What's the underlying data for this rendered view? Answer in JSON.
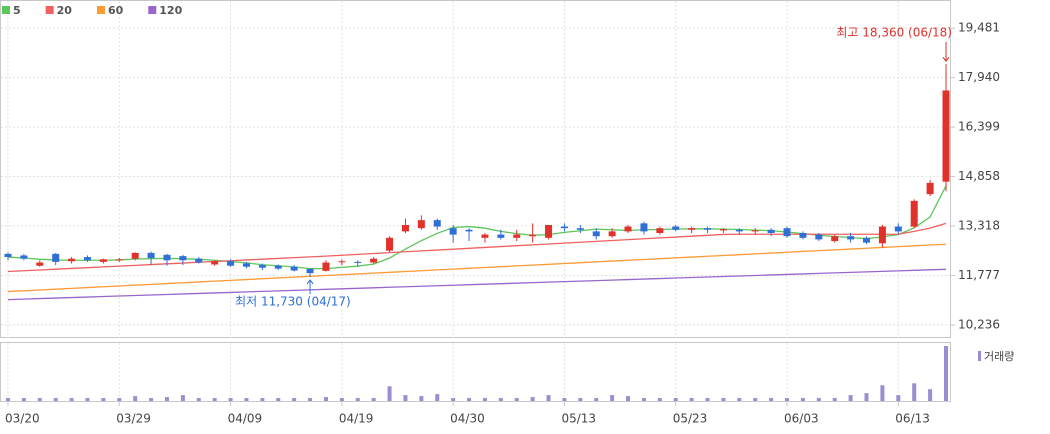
{
  "chart_data": {
    "type": "candlestick",
    "categories": [
      "03/20",
      null,
      null,
      null,
      null,
      null,
      null,
      "03/29",
      null,
      null,
      null,
      null,
      null,
      null,
      "04/09",
      null,
      null,
      null,
      null,
      null,
      null,
      "04/19",
      null,
      null,
      null,
      null,
      null,
      null,
      "04/30",
      null,
      null,
      null,
      null,
      null,
      null,
      "05/13",
      null,
      null,
      null,
      null,
      null,
      null,
      "05/23",
      null,
      null,
      null,
      null,
      null,
      null,
      "06/03",
      null,
      null,
      null,
      null,
      null,
      null,
      "06/13",
      null,
      null,
      null
    ],
    "open": [
      12450,
      12400,
      12080,
      12450,
      12220,
      12350,
      12200,
      12250,
      12300,
      12480,
      12420,
      12380,
      12300,
      12120,
      12220,
      12150,
      12100,
      12080,
      12050,
      11980,
      11920,
      12200,
      12200,
      12180,
      12550,
      13150,
      13250,
      13500,
      13250,
      13200,
      12950,
      13050,
      12950,
      13000,
      12950,
      13300,
      13250,
      13150,
      13000,
      13150,
      13400,
      13100,
      13300,
      13200,
      13250,
      13180,
      13200,
      13150,
      13200,
      13250,
      13100,
      13050,
      12850,
      13000,
      12950,
      12780,
      13300,
      13300,
      14310,
      14700
    ],
    "high": [
      12500,
      12450,
      12250,
      12480,
      12350,
      12400,
      12300,
      12320,
      12500,
      12520,
      12450,
      12420,
      12350,
      12250,
      12280,
      12200,
      12150,
      12120,
      12100,
      12000,
      12250,
      12280,
      12250,
      12350,
      13000,
      13550,
      13650,
      13550,
      13350,
      13250,
      13100,
      13200,
      13200,
      13400,
      13350,
      13400,
      13350,
      13250,
      13250,
      13350,
      13450,
      13300,
      13350,
      13300,
      13300,
      13250,
      13250,
      13250,
      13250,
      13300,
      13150,
      13100,
      13050,
      13100,
      13000,
      13350,
      13400,
      14150,
      14750,
      18360
    ],
    "low": [
      12250,
      12250,
      12050,
      12100,
      12150,
      12200,
      12150,
      12200,
      12250,
      12100,
      12080,
      12100,
      12150,
      12080,
      12050,
      12000,
      11950,
      11950,
      11900,
      11730,
      11900,
      12100,
      12050,
      12150,
      12500,
      13100,
      13200,
      13200,
      12800,
      12850,
      12800,
      12900,
      12850,
      12800,
      12900,
      13150,
      13100,
      12900,
      12950,
      13100,
      13050,
      13050,
      13150,
      13100,
      13100,
      13100,
      13050,
      13050,
      13000,
      12950,
      12900,
      12850,
      12800,
      12800,
      12750,
      12650,
      13050,
      13250,
      14250,
      14400
    ],
    "close": [
      12350,
      12300,
      12180,
      12200,
      12300,
      12250,
      12280,
      12280,
      12480,
      12320,
      12250,
      12250,
      12180,
      12220,
      12080,
      12050,
      12020,
      11990,
      11930,
      11850,
      12180,
      12220,
      12180,
      12300,
      12950,
      13350,
      13500,
      13300,
      13050,
      13150,
      13050,
      12950,
      13050,
      13050,
      13350,
      13250,
      13200,
      13000,
      13150,
      13300,
      13150,
      13250,
      13200,
      13250,
      13200,
      13220,
      13150,
      13180,
      13100,
      13000,
      12950,
      12900,
      13000,
      12900,
      12800,
      13300,
      13150,
      14100,
      14660,
      17540
    ],
    "up_color": "#e0312a",
    "down_color": "#2f6fd6",
    "series": [
      {
        "name": "5",
        "color": "#5cc65c",
        "values": [
          12350,
          12320,
          12280,
          12260,
          12250,
          12250,
          12250,
          12260,
          12290,
          12300,
          12310,
          12300,
          12280,
          12250,
          12210,
          12170,
          12110,
          12080,
          12040,
          11990,
          11990,
          12030,
          12070,
          12130,
          12320,
          12600,
          12860,
          13090,
          13270,
          13300,
          13250,
          13150,
          13080,
          13030,
          13050,
          13120,
          13170,
          13220,
          13200,
          13180,
          13200,
          13210,
          13220,
          13230,
          13230,
          13220,
          13210,
          13190,
          13170,
          13130,
          13080,
          13030,
          12990,
          12960,
          12920,
          12980,
          13050,
          13260,
          13600,
          14570
        ]
      },
      {
        "name": "20",
        "color": "#f06060",
        "values": [
          11900,
          11924,
          11948,
          11972,
          11996,
          12020,
          12044,
          12068,
          12092,
          12116,
          12140,
          12164,
          12188,
          12212,
          12236,
          12260,
          12284,
          12308,
          12332,
          12356,
          12380,
          12407,
          12434,
          12461,
          12488,
          12515,
          12542,
          12569,
          12596,
          12623,
          12650,
          12677,
          12704,
          12731,
          12758,
          12785,
          12812,
          12839,
          12866,
          12893,
          12920,
          12947,
          12974,
          13001,
          13028,
          13055,
          13060,
          13060,
          13060,
          13060,
          13060,
          13060,
          13060,
          13060,
          13060,
          13060,
          13060,
          13150,
          13250,
          13400
        ]
      },
      {
        "name": "60",
        "color": "#ff9933",
        "values": [
          11275,
          11300,
          11325,
          11350,
          11375,
          11400,
          11425,
          11450,
          11475,
          11500,
          11525,
          11550,
          11575,
          11600,
          11625,
          11650,
          11675,
          11700,
          11725,
          11750,
          11775,
          11800,
          11825,
          11850,
          11875,
          11900,
          11925,
          11950,
          11975,
          12000,
          12025,
          12050,
          12075,
          12100,
          12125,
          12150,
          12175,
          12200,
          12225,
          12250,
          12275,
          12300,
          12325,
          12350,
          12375,
          12400,
          12425,
          12450,
          12475,
          12500,
          12525,
          12550,
          12575,
          12600,
          12625,
          12650,
          12675,
          12700,
          12725,
          12750
        ]
      },
      {
        "name": "120",
        "color": "#9966cc",
        "values": [
          11025,
          11041,
          11057,
          11073,
          11089,
          11105,
          11121,
          11137,
          11153,
          11169,
          11185,
          11201,
          11217,
          11233,
          11249,
          11265,
          11281,
          11297,
          11313,
          11329,
          11345,
          11361,
          11377,
          11393,
          11409,
          11425,
          11441,
          11457,
          11473,
          11489,
          11505,
          11521,
          11537,
          11553,
          11569,
          11585,
          11601,
          11617,
          11633,
          11649,
          11665,
          11681,
          11697,
          11713,
          11729,
          11745,
          11761,
          11777,
          11793,
          11809,
          11825,
          11841,
          11857,
          11873,
          11889,
          11905,
          11921,
          11937,
          11953,
          11969
        ]
      }
    ],
    "volume": {
      "name": "거래량",
      "color": "#9b8ed0",
      "values": [
        30,
        30,
        30,
        30,
        30,
        30,
        30,
        30,
        50,
        30,
        40,
        60,
        30,
        30,
        30,
        30,
        30,
        30,
        30,
        30,
        40,
        30,
        30,
        30,
        150,
        60,
        50,
        70,
        30,
        30,
        30,
        30,
        30,
        40,
        60,
        30,
        30,
        30,
        60,
        50,
        30,
        30,
        30,
        30,
        30,
        30,
        30,
        30,
        30,
        30,
        30,
        30,
        30,
        60,
        80,
        160,
        60,
        180,
        120,
        560
      ]
    },
    "ylim": [
      9829,
      20358
    ],
    "yticks": [
      {
        "value": 10236,
        "label": "10,236"
      },
      {
        "value": 11777,
        "label": "11,777"
      },
      {
        "value": 13318,
        "label": "13,318"
      },
      {
        "value": 14858,
        "label": "14,858"
      },
      {
        "value": 16399,
        "label": "16,399"
      },
      {
        "value": 17940,
        "label": "17,940"
      },
      {
        "value": 19481,
        "label": "19,481"
      }
    ],
    "grid": true,
    "annotations": [
      {
        "text": "최고 18,360 (06/18)",
        "index": 59,
        "value": 18360,
        "color": "#e0312a",
        "side": "above"
      },
      {
        "text": "최저 11,730 (04/17)",
        "index": 19,
        "value": 11730,
        "color": "#2f6fd6",
        "side": "below"
      }
    ]
  }
}
